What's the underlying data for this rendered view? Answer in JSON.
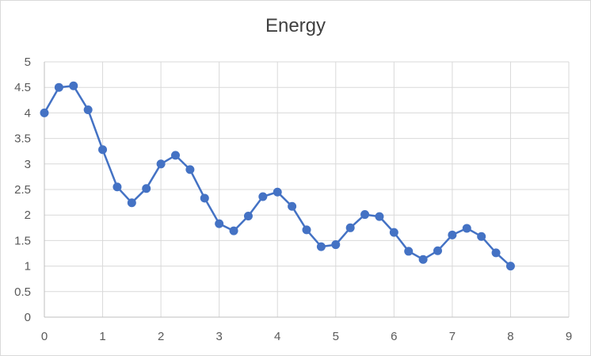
{
  "chart_data": {
    "type": "line",
    "title": "Energy",
    "xlabel": "",
    "ylabel": "",
    "xlim": [
      0,
      9
    ],
    "ylim": [
      0,
      5
    ],
    "x_ticks": [
      "0",
      "1",
      "2",
      "3",
      "4",
      "5",
      "6",
      "7",
      "8",
      "9"
    ],
    "y_ticks": [
      "0",
      "0.5",
      "1",
      "1.5",
      "2",
      "2.5",
      "3",
      "3.5",
      "4",
      "4.5",
      "5"
    ],
    "grid": true,
    "legend": "none",
    "series": [
      {
        "color": "#4472c4",
        "x": [
          0,
          0.25,
          0.5,
          0.75,
          1,
          1.25,
          1.5,
          1.75,
          2,
          2.25,
          2.5,
          2.75,
          3,
          3.25,
          3.5,
          3.75,
          4,
          4.25,
          4.5,
          4.75,
          5,
          5.25,
          5.5,
          5.75,
          6,
          6.25,
          6.5,
          6.75,
          7,
          7.25,
          7.5,
          7.75,
          8
        ],
        "y": [
          4.0,
          4.5,
          4.53,
          4.06,
          3.28,
          2.55,
          2.24,
          2.52,
          3.0,
          3.17,
          2.89,
          2.33,
          1.83,
          1.69,
          1.98,
          2.36,
          2.45,
          2.17,
          1.71,
          1.38,
          1.42,
          1.75,
          2.01,
          1.97,
          1.66,
          1.29,
          1.13,
          1.3,
          1.61,
          1.74,
          1.58,
          1.26,
          1.0
        ]
      }
    ]
  }
}
